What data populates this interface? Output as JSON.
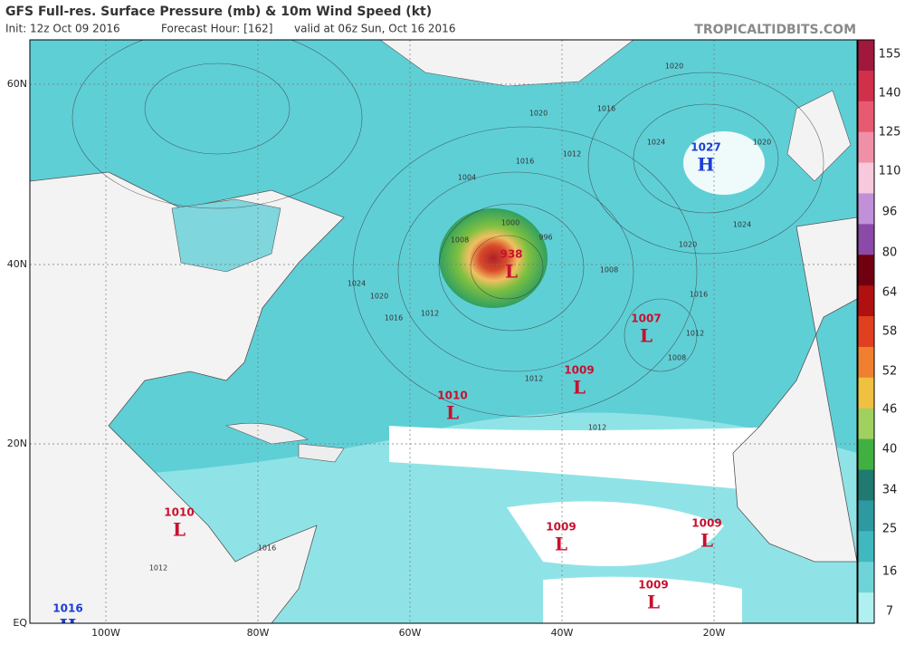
{
  "header": {
    "title": "GFS Full-res. Surface Pressure (mb) & 10m Wind Speed (kt)",
    "init": "Init: 12z Oct 09 2016",
    "forecast_hour": "Forecast Hour: [162]",
    "valid": "valid at 06z Sun, Oct 16 2016",
    "site": "TROPICALTIDBITS.COM"
  },
  "map": {
    "lat_labels": [
      "60N",
      "40N",
      "20N",
      "EQ"
    ],
    "lon_labels": [
      "100W",
      "80W",
      "60W",
      "40W",
      "20W"
    ],
    "centers": [
      {
        "value": "1027",
        "letter": "H"
      },
      {
        "value": "938",
        "letter": "L"
      },
      {
        "value": "1007",
        "letter": "L"
      },
      {
        "value": "1009",
        "letter": "L"
      },
      {
        "value": "1010",
        "letter": "L"
      },
      {
        "value": "1010",
        "letter": "L"
      },
      {
        "value": "1009",
        "letter": "L"
      },
      {
        "value": "1009",
        "letter": "L"
      },
      {
        "value": "1009",
        "letter": "L"
      },
      {
        "value": "1016",
        "letter": "H"
      }
    ],
    "isobar_labels": [
      "1020",
      "1020",
      "1016",
      "1012",
      "1024",
      "1020",
      "1024",
      "1020",
      "1016",
      "1012",
      "1008",
      "1016",
      "1004",
      "1000",
      "996",
      "1008",
      "1024",
      "1020",
      "1016",
      "1012",
      "1008",
      "1012",
      "1012",
      "1016",
      "1012"
    ]
  },
  "colorbar": {
    "ticks": [
      155,
      140,
      125,
      110,
      96,
      80,
      64,
      58,
      52,
      46,
      40,
      34,
      25,
      16,
      7
    ]
  }
}
